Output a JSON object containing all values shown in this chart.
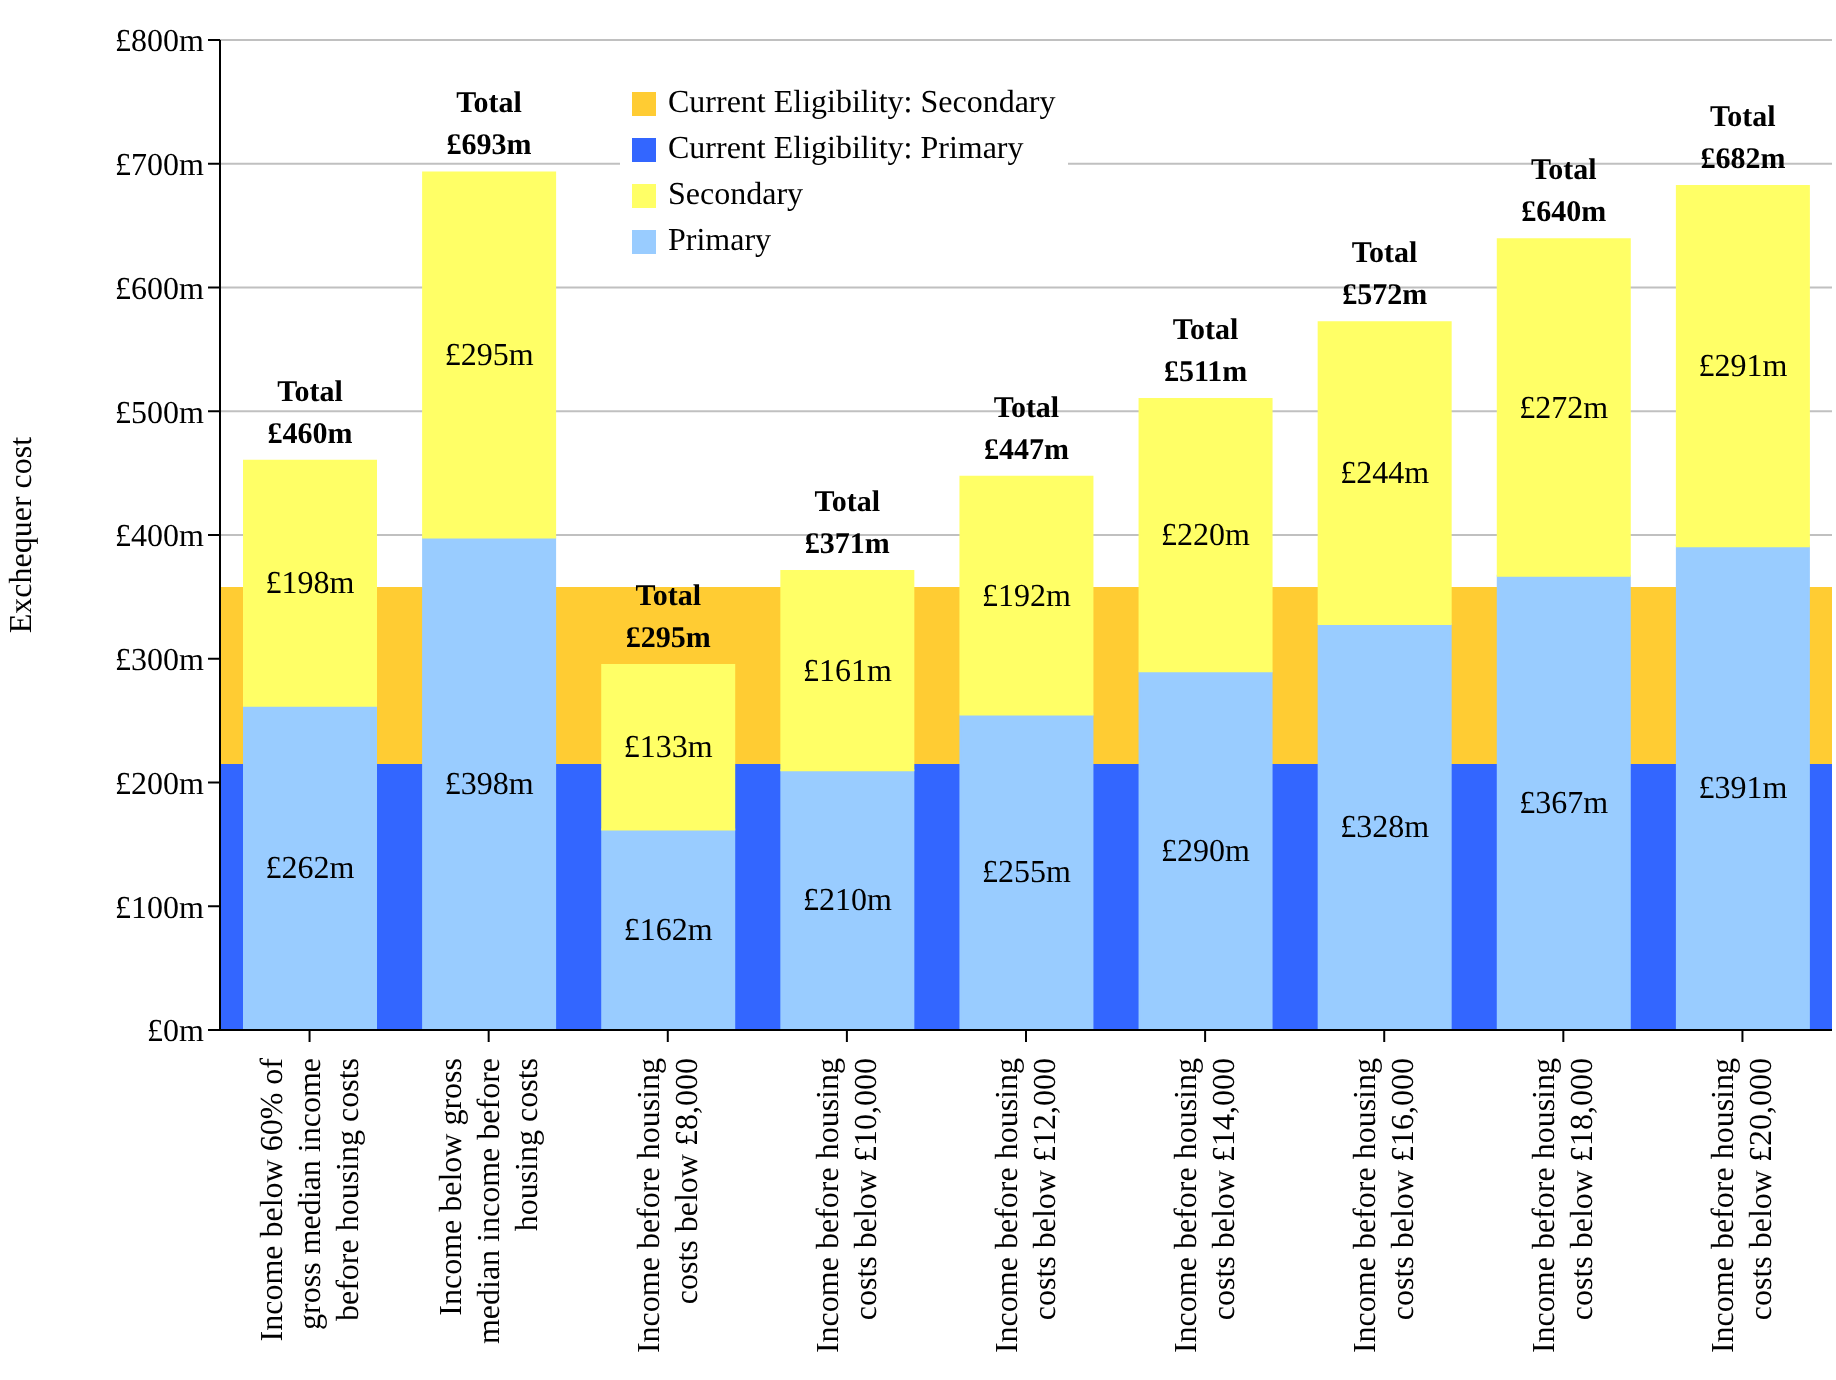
{
  "chart_data": {
    "type": "bar",
    "stacked": true,
    "ylabel": "Exchequer cost",
    "categories": [
      "Income below 60% of gross median income before housing costs",
      "Income below gross median income before housing costs",
      "Income before housing costs below £8,000",
      "Income before housing costs below £10,000",
      "Income before housing costs below £12,000",
      "Income before housing costs below £14,000",
      "Income before housing costs below £16,000",
      "Income before housing costs below £18,000",
      "Income before housing costs below £20,000"
    ],
    "series": [
      {
        "name": "Primary",
        "color": "#99ccff",
        "values": [
          262,
          398,
          162,
          210,
          255,
          290,
          328,
          367,
          391
        ],
        "value_labels": [
          "£262m",
          "£398m",
          "£162m",
          "£210m",
          "£255m",
          "£290m",
          "£328m",
          "£367m",
          "£391m"
        ]
      },
      {
        "name": "Secondary",
        "color": "#ffff66",
        "values": [
          198,
          295,
          133,
          161,
          192,
          220,
          244,
          272,
          291
        ],
        "value_labels": [
          "£198m",
          "£295m",
          "£133m",
          "£161m",
          "£192m",
          "£220m",
          "£244m",
          "£272m",
          "£291m"
        ]
      }
    ],
    "bands": [
      {
        "axis": "y",
        "from": 0,
        "to": 215,
        "label": "Current Eligibility: Primary",
        "color": "#3366ff"
      },
      {
        "axis": "y",
        "from": 215,
        "to": 358,
        "label": "Current Eligibility: Secondary",
        "color": "#ffcc33"
      }
    ],
    "totals": [
      "Total £460m",
      "Total £693m",
      "Total £295m",
      "Total £371m",
      "Total £447m",
      "Total £511m",
      "Total £572m",
      "Total £640m",
      "Total £682m"
    ],
    "ylim": [
      0,
      800
    ],
    "yticks": [
      {
        "value": 0,
        "label": "£0m"
      },
      {
        "value": 100,
        "label": "£100m"
      },
      {
        "value": 200,
        "label": "£200m"
      },
      {
        "value": 300,
        "label": "£300m"
      },
      {
        "value": 400,
        "label": "£400m"
      },
      {
        "value": 500,
        "label": "£500m"
      },
      {
        "value": 600,
        "label": "£600m"
      },
      {
        "value": 700,
        "label": "£700m"
      },
      {
        "value": 800,
        "label": "£800m"
      }
    ],
    "grid": "y",
    "legend": "top"
  }
}
